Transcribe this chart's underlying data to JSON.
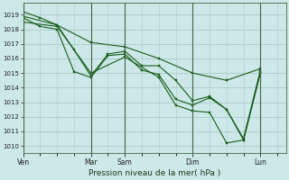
{
  "background_color": "#cce8e8",
  "grid_color": "#aacccc",
  "line_color": "#1a5c1a",
  "marker_color": "#1a5c1a",
  "title": "Pression niveau de la mer( hPa )",
  "ylabel_ticks": [
    1010,
    1011,
    1012,
    1013,
    1014,
    1015,
    1016,
    1017,
    1018,
    1019
  ],
  "ylim": [
    1009.5,
    1019.8
  ],
  "x_tick_labels": [
    "Ven",
    "Mar",
    "Sam",
    "Dim",
    "Lun"
  ],
  "x_tick_positions": [
    0,
    48,
    72,
    120,
    168
  ],
  "xlim": [
    0,
    186
  ],
  "series": [
    {
      "x": [
        0,
        12,
        24,
        36,
        48,
        60,
        72,
        84,
        96,
        108,
        120,
        132,
        144,
        156,
        168
      ],
      "y": [
        1019.2,
        1018.8,
        1018.3,
        1016.6,
        1014.8,
        1016.3,
        1016.5,
        1015.5,
        1015.5,
        1014.5,
        1013.1,
        1013.4,
        1012.5,
        1010.4,
        1015.1
      ]
    },
    {
      "x": [
        0,
        12,
        24,
        36,
        48,
        60,
        72,
        84,
        96,
        108,
        120,
        132,
        144,
        156,
        168
      ],
      "y": [
        1018.8,
        1018.2,
        1018.0,
        1015.1,
        1014.7,
        1016.2,
        1016.3,
        1015.2,
        1014.9,
        1013.2,
        1012.8,
        1013.3,
        1012.5,
        1010.5,
        1015.2
      ]
    },
    {
      "x": [
        0,
        24,
        48,
        72,
        96,
        120,
        144,
        168
      ],
      "y": [
        1018.9,
        1018.3,
        1017.1,
        1016.8,
        1016.0,
        1015.0,
        1014.5,
        1015.3
      ]
    },
    {
      "x": [
        0,
        24,
        48,
        72,
        96,
        108,
        120,
        132,
        144,
        156,
        168
      ],
      "y": [
        1018.5,
        1018.2,
        1015.0,
        1016.1,
        1014.7,
        1012.8,
        1012.4,
        1012.3,
        1010.2,
        1010.4,
        1015.0
      ]
    }
  ]
}
